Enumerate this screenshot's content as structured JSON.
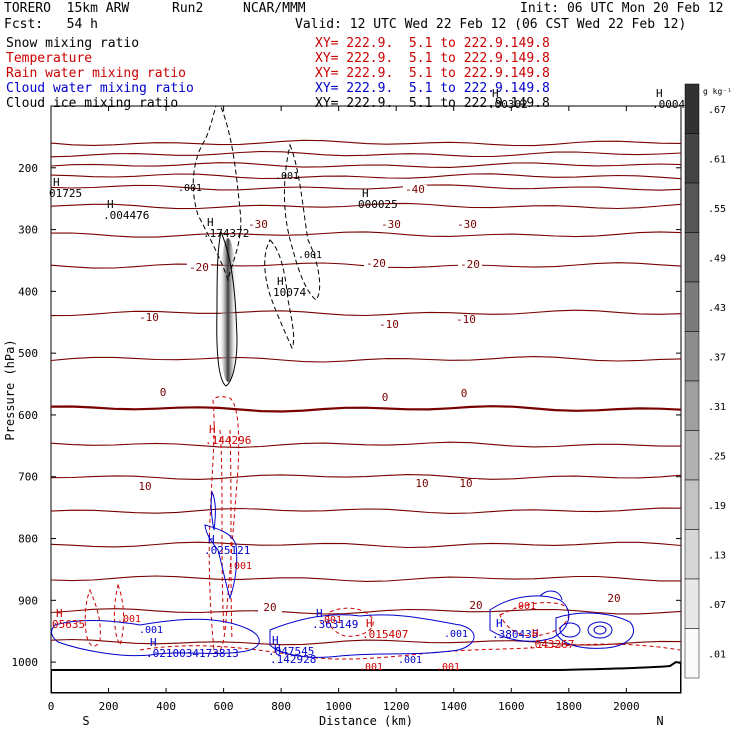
{
  "header": {
    "model": "TORERO  15km ARW",
    "run": "Run2",
    "org": "NCAR/MMM",
    "init": "Init: 06 UTC Mon 20 Feb 12",
    "fcst": "Fcst:   54 h",
    "valid": "Valid: 12 UTC Wed 22 Feb 12 (06 CST Wed 22 Feb 12)"
  },
  "fields": [
    {
      "name": "Snow mixing ratio",
      "xy": "XY= 222.9.  5.1 to 222.9.149.8",
      "color": "#000000"
    },
    {
      "name": "Temperature",
      "xy": "XY= 222.9.  5.1 to 222.9.149.8",
      "color": "#cc0000"
    },
    {
      "name": "Rain water mixing ratio",
      "xy": "XY= 222.9.  5.1 to 222.9.149.8",
      "color": "#cc0000"
    },
    {
      "name": "Cloud water mixing ratio",
      "xy": "XY= 222.9.  5.1 to 222.9.149.8",
      "color": "#0000cc"
    },
    {
      "name": "Cloud ice mixing ratio",
      "xy": "XY= 222.9.  5.1 to 222.9.149.8",
      "color": "#000000"
    }
  ],
  "chart_data": {
    "type": "cross-section contour",
    "xlabel": "Distance (km)",
    "ylabel": "Pressure (hPa)",
    "xlim": [
      0,
      2190
    ],
    "ylim": [
      1050,
      100
    ],
    "x_ticks": [
      "0",
      "200",
      "400",
      "600",
      "800",
      "1000",
      "1200",
      "1400",
      "1600",
      "1800",
      "2000"
    ],
    "x_tick_values": [
      0,
      200,
      400,
      600,
      800,
      1000,
      1200,
      1400,
      1600,
      1800,
      2000
    ],
    "y_ticks": [
      "200",
      "300",
      "400",
      "500",
      "600",
      "700",
      "800",
      "900",
      "1000"
    ],
    "y_tick_values": [
      200,
      300,
      400,
      500,
      600,
      700,
      800,
      900,
      1000
    ],
    "end_labels": {
      "left": "S",
      "right": "N"
    },
    "colorbar": {
      "unit": "g kg⁻¹",
      "ticks": [
        ".67",
        ".61",
        ".55",
        ".49",
        ".43",
        ".37",
        ".31",
        ".25",
        ".19",
        ".13",
        ".07",
        ".01"
      ]
    },
    "isotherms": [
      {
        "temp": -40,
        "p": 160
      },
      {
        "temp": -40,
        "p": 178
      },
      {
        "temp": -40,
        "p": 196
      },
      {
        "temp": -40,
        "p": 214
      },
      {
        "temp": -40,
        "p": 232
      },
      {
        "temp": -40,
        "p": 262,
        "label": "-40"
      },
      {
        "temp": -30,
        "p": 308,
        "label": "-30"
      },
      {
        "temp": -20,
        "p": 358,
        "label": "-20"
      },
      {
        "temp": -10,
        "p": 435,
        "label": "-10"
      },
      {
        "temp": -5,
        "p": 510
      },
      {
        "temp": 0,
        "p": 590,
        "label": "0",
        "bold": true
      },
      {
        "temp": 2,
        "p": 648
      },
      {
        "temp": 6,
        "p": 700
      },
      {
        "temp": 10,
        "p": 755,
        "label": "10"
      },
      {
        "temp": 14,
        "p": 810
      },
      {
        "temp": 17,
        "p": 865
      },
      {
        "temp": 20,
        "p": 918,
        "label": "20"
      },
      {
        "temp": 24,
        "p": 968
      }
    ],
    "temperature_labels": [
      "-40",
      "-30",
      "-30",
      "-30",
      "-20",
      "-20",
      "-20",
      "-10",
      "-10",
      "-10",
      "0",
      "0",
      "0",
      "10",
      "10",
      "10",
      "20",
      "20",
      "20"
    ],
    "max_labels": [
      {
        "mark": "H",
        "value": "01725"
      },
      {
        "mark": "H",
        "value": ".004476"
      },
      {
        "mark": "H",
        "value": ".174372"
      },
      {
        "mark": "H",
        "value": "10074"
      },
      {
        "mark": "H",
        "value": "000025"
      },
      {
        "mark": "H",
        "value": ".0004"
      },
      {
        "mark": "H",
        "value": ".00302"
      },
      {
        "mark": "H",
        "value": ".144296"
      },
      {
        "mark": "H",
        "value": ".025121"
      },
      {
        "mark": "H",
        "value": "05635"
      },
      {
        "mark": "H",
        "value": ".0210034173813"
      },
      {
        "mark": "H",
        "value": ".047545"
      },
      {
        "mark": "H",
        "value": ".142928"
      },
      {
        "mark": "H",
        "value": ".363149"
      },
      {
        "mark": "H",
        "value": ".015407"
      },
      {
        "mark": "H",
        "value": ".380435"
      },
      {
        "mark": "H",
        "value": ".043267"
      }
    ],
    "contour_labels": [
      ".001",
      ".001",
      ".001",
      ".001",
      ".001",
      ".001",
      ".001",
      ".001",
      ".001",
      ".001",
      ".001",
      ".001"
    ]
  }
}
